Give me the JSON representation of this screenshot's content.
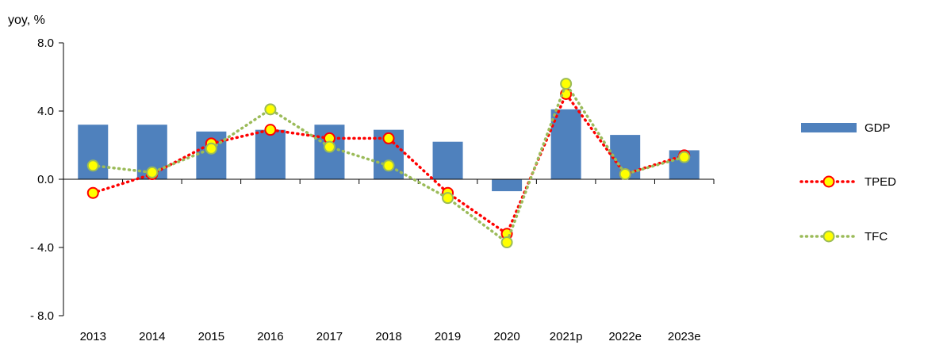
{
  "chart_data": {
    "type": "bar",
    "ylabel": "yoy, %",
    "ylim": [
      -8,
      8
    ],
    "yticks": [
      {
        "value": 8,
        "label": "8.0"
      },
      {
        "value": 4,
        "label": "4.0"
      },
      {
        "value": 0,
        "label": "0.0"
      },
      {
        "value": -4,
        "label": "- 4.0"
      },
      {
        "value": -8,
        "label": "- 8.0"
      }
    ],
    "categories": [
      "2013",
      "2014",
      "2015",
      "2016",
      "2017",
      "2018",
      "2019",
      "2020",
      "2021p",
      "2022e",
      "2023e"
    ],
    "series": [
      {
        "name": "GDP",
        "type": "bar",
        "color": "#4f81bd",
        "values": [
          3.2,
          3.2,
          2.8,
          2.9,
          3.2,
          2.9,
          2.2,
          -0.7,
          4.1,
          2.6,
          1.7
        ]
      },
      {
        "name": "TPED",
        "type": "line",
        "line_color": "#ff0000",
        "marker_fill": "#ffff00",
        "marker_edge": "#ff0000",
        "values": [
          -0.8,
          0.3,
          2.1,
          2.9,
          2.4,
          2.4,
          -0.8,
          -3.2,
          5.0,
          0.3,
          1.4
        ]
      },
      {
        "name": "TFC",
        "type": "line",
        "line_color": "#9bbb59",
        "marker_fill": "#ffff00",
        "marker_edge": "#9bbb59",
        "values": [
          0.8,
          0.4,
          1.8,
          4.1,
          1.9,
          0.8,
          -1.1,
          -3.7,
          5.6,
          0.3,
          1.3
        ]
      }
    ],
    "legend_position": "right",
    "grid": false
  }
}
